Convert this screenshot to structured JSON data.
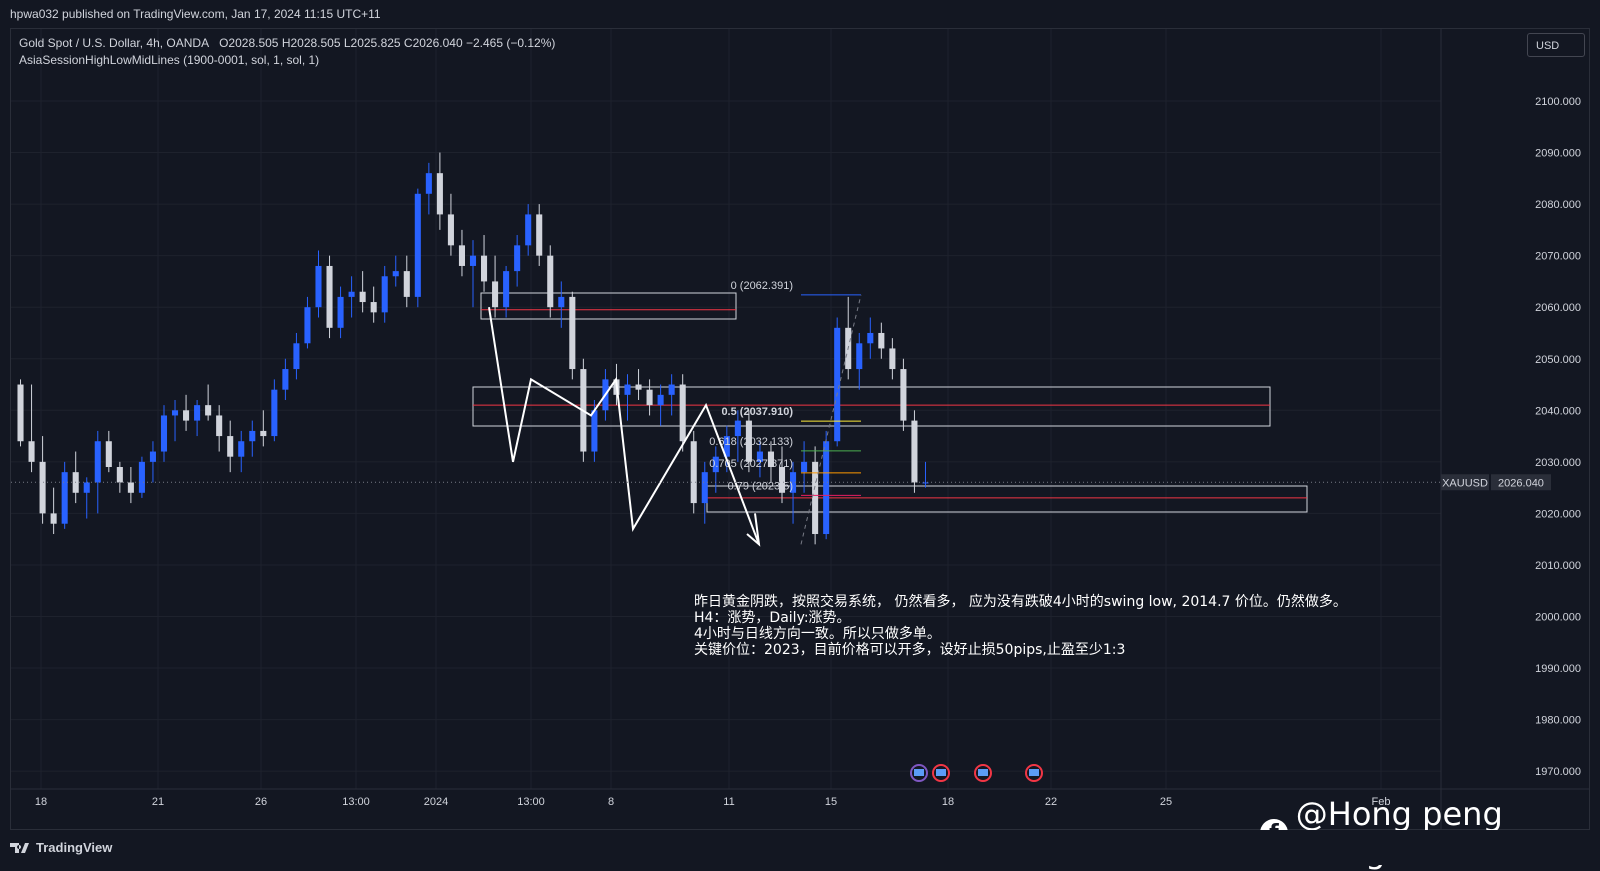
{
  "header": {
    "published": "hpwa032 published on TradingView.com, Jan 17, 2024 11:15 UTC+11"
  },
  "legend": {
    "symbol_line": "Gold Spot / U.S. Dollar, 4h, OANDA",
    "ohlc": "O2028.505  H2028.505  L2025.825  C2026.040  −2.465 (−0.12%)",
    "indicator": "AsiaSessionHighLowMidLines (1900-0001, sol, 1, sol, 1)"
  },
  "currency": "USD",
  "price_axis": {
    "ticks": [
      "2100.000",
      "2090.000",
      "2080.000",
      "2070.000",
      "2060.000",
      "2050.000",
      "2040.000",
      "2030.000",
      "2020.000",
      "2010.000",
      "2000.000",
      "1990.000",
      "1980.000",
      "1970.000"
    ],
    "symbol_tag": "XAUUSD",
    "last_price": "2026.040"
  },
  "time_axis": {
    "ticks": [
      "18",
      "21",
      "26",
      "13:00",
      "2024",
      "13:00",
      "8",
      "11",
      "15",
      "18",
      "22",
      "25",
      "Feb"
    ]
  },
  "fib_labels": {
    "level_0": "0 (2062.391)",
    "level_05": "0.5 (2037.910)",
    "level_0618": "0.618 (2032.133)",
    "level_0705": "0.705 (2027.871)",
    "level_079": "0.79 (2023.5)"
  },
  "annotation": {
    "line1": "昨日黄金阴跌，按照交易系统， 仍然看多， 应为没有跌破4小时的swing low, 2014.7 价位。仍然做多。",
    "line2": "H4：涨势，Daily:涨势。",
    "line3": "4小时与日线方向一致。所以只做多单。",
    "line4": "关键价位：2023，目前价格可以开多，设好止损50pips,止盈至少1:3"
  },
  "watermark": "@Hong peng Wang",
  "footer": {
    "brand": "TradingView"
  },
  "colors": {
    "bull": "#2962ff",
    "bear": "#d1d4dc",
    "fib_0": "#2962ff",
    "fib_05": "#ffeb3b",
    "fib_0618": "#4caf50",
    "fib_0705": "#ff9800",
    "fib_079": "#e91e63"
  },
  "chart_data": {
    "type": "candlestick",
    "symbol": "XAUUSD",
    "timeframe": "4h",
    "ylim": [
      1967,
      2108
    ],
    "last_price": 2026.04,
    "candles": [
      [
        2045,
        2046,
        2033,
        2034
      ],
      [
        2034,
        2045,
        2028,
        2030
      ],
      [
        2030,
        2035,
        2018,
        2020
      ],
      [
        2020,
        2025,
        2016,
        2018
      ],
      [
        2018,
        2030,
        2017,
        2028
      ],
      [
        2028,
        2032,
        2022,
        2024
      ],
      [
        2024,
        2027,
        2019,
        2026
      ],
      [
        2026,
        2036,
        2020,
        2034
      ],
      [
        2034,
        2036,
        2028,
        2029
      ],
      [
        2029,
        2030,
        2024,
        2026
      ],
      [
        2026,
        2029,
        2022,
        2024
      ],
      [
        2024,
        2031,
        2023,
        2030
      ],
      [
        2030,
        2034,
        2026,
        2032
      ],
      [
        2032,
        2041,
        2030,
        2039
      ],
      [
        2039,
        2042,
        2034,
        2040
      ],
      [
        2040,
        2043,
        2036,
        2038
      ],
      [
        2038,
        2042,
        2035,
        2041
      ],
      [
        2041,
        2045,
        2038,
        2039
      ],
      [
        2039,
        2041,
        2032,
        2035
      ],
      [
        2035,
        2038,
        2028,
        2031
      ],
      [
        2031,
        2036,
        2028,
        2034
      ],
      [
        2034,
        2038,
        2031,
        2036
      ],
      [
        2036,
        2040,
        2033,
        2035
      ],
      [
        2035,
        2046,
        2034,
        2044
      ],
      [
        2044,
        2050,
        2042,
        2048
      ],
      [
        2048,
        2055,
        2046,
        2053
      ],
      [
        2053,
        2062,
        2052,
        2060
      ],
      [
        2060,
        2071,
        2058,
        2068
      ],
      [
        2068,
        2070,
        2054,
        2056
      ],
      [
        2056,
        2064,
        2054,
        2062
      ],
      [
        2062,
        2066,
        2058,
        2063
      ],
      [
        2063,
        2067,
        2059,
        2061
      ],
      [
        2061,
        2064,
        2057,
        2059
      ],
      [
        2059,
        2068,
        2057,
        2066
      ],
      [
        2066,
        2070,
        2064,
        2067
      ],
      [
        2067,
        2070,
        2060,
        2062
      ],
      [
        2062,
        2083,
        2060,
        2082
      ],
      [
        2082,
        2088,
        2078,
        2086
      ],
      [
        2086,
        2090,
        2075,
        2078
      ],
      [
        2078,
        2082,
        2070,
        2072
      ],
      [
        2072,
        2075,
        2066,
        2068
      ],
      [
        2068,
        2073,
        2060,
        2070
      ],
      [
        2070,
        2074,
        2063,
        2065
      ],
      [
        2065,
        2070,
        2058,
        2060
      ],
      [
        2060,
        2068,
        2058,
        2067
      ],
      [
        2067,
        2074,
        2064,
        2072
      ],
      [
        2072,
        2080,
        2070,
        2078
      ],
      [
        2078,
        2080,
        2068,
        2070
      ],
      [
        2070,
        2072,
        2058,
        2060
      ],
      [
        2060,
        2065,
        2056,
        2062
      ],
      [
        2062,
        2063,
        2046,
        2048
      ],
      [
        2048,
        2050,
        2030,
        2032
      ],
      [
        2032,
        2042,
        2030,
        2040
      ],
      [
        2040,
        2048,
        2038,
        2046
      ],
      [
        2046,
        2049,
        2041,
        2043
      ],
      [
        2043,
        2047,
        2038,
        2045
      ],
      [
        2045,
        2048,
        2042,
        2044
      ],
      [
        2044,
        2046,
        2039,
        2041
      ],
      [
        2041,
        2045,
        2037,
        2043
      ],
      [
        2043,
        2047,
        2039,
        2045
      ],
      [
        2045,
        2047,
        2032,
        2034
      ],
      [
        2034,
        2036,
        2020,
        2022
      ],
      [
        2022,
        2030,
        2018,
        2028
      ],
      [
        2028,
        2033,
        2024,
        2031
      ],
      [
        2031,
        2037,
        2028,
        2035
      ],
      [
        2035,
        2040,
        2030,
        2038
      ],
      [
        2038,
        2040,
        2028,
        2030
      ],
      [
        2030,
        2034,
        2027,
        2032
      ],
      [
        2032,
        2034,
        2026,
        2029
      ],
      [
        2029,
        2033,
        2022,
        2024
      ],
      [
        2024,
        2030,
        2018,
        2028
      ],
      [
        2028,
        2034,
        2024,
        2030
      ],
      [
        2030,
        2033,
        2014,
        2016
      ],
      [
        2016,
        2036,
        2015,
        2034
      ],
      [
        2034,
        2058,
        2033,
        2056
      ],
      [
        2056,
        2062,
        2046,
        2048
      ],
      [
        2048,
        2055,
        2044,
        2053
      ],
      [
        2053,
        2058,
        2050,
        2055
      ],
      [
        2055,
        2057,
        2050,
        2052
      ],
      [
        2052,
        2054,
        2046,
        2048
      ],
      [
        2048,
        2050,
        2036,
        2038
      ],
      [
        2038,
        2040,
        2024,
        2026
      ],
      [
        2026,
        2030,
        2025,
        2026
      ]
    ]
  }
}
